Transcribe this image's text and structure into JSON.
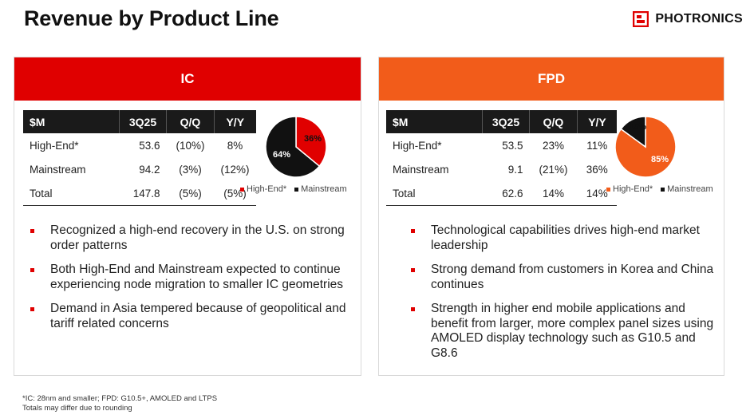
{
  "page_title": "Revenue by Product Line",
  "logo": {
    "name": "PHOTRONICS",
    "icon": "photronics-logo-icon",
    "color": "#e00000"
  },
  "ic": {
    "header": "IC",
    "header_color": "#e00000",
    "table": {
      "columns": [
        "$M",
        "3Q25",
        "Q/Q",
        "Y/Y"
      ],
      "rows": [
        [
          "High-End*",
          "53.6",
          "(10%)",
          "8%"
        ],
        [
          "Mainstream",
          "94.2",
          "(3%)",
          "(12%)"
        ],
        [
          "Total",
          "147.8",
          "(5%)",
          "(5%)"
        ]
      ]
    },
    "bullets": [
      "Recognized a high-end recovery in the U.S. on strong order patterns",
      "Both High-End and Mainstream expected to continue experiencing node migration to smaller IC geometries",
      "Demand in Asia tempered because of geopolitical and tariff related concerns"
    ]
  },
  "fpd": {
    "header": "FPD",
    "header_color": "#f25c1a",
    "table": {
      "columns": [
        "$M",
        "3Q25",
        "Q/Q",
        "Y/Y"
      ],
      "rows": [
        [
          "High-End*",
          "53.5",
          "23%",
          "11%"
        ],
        [
          "Mainstream",
          "9.1",
          "(21%)",
          "36%"
        ],
        [
          "Total",
          "62.6",
          "14%",
          "14%"
        ]
      ]
    },
    "bullets": [
      "Technological capabilities drives high-end market leadership",
      "Strong demand from customers in Korea and China continues",
      "Strength in higher end mobile applications and benefit from larger, more complex panel sizes using AMOLED display technology such as G10.5 and G8.6"
    ]
  },
  "chart_data": [
    {
      "type": "pie",
      "title": "",
      "categories": [
        "High-End*",
        "Mainstream"
      ],
      "values": [
        36,
        64
      ],
      "labels": [
        "36%",
        "64%"
      ],
      "colors": [
        "#e00000",
        "#111111"
      ],
      "legend": "bottom"
    },
    {
      "type": "pie",
      "title": "",
      "categories": [
        "High-End*",
        "Mainstream"
      ],
      "values": [
        85,
        15
      ],
      "labels": [
        "85%",
        "15%"
      ],
      "colors": [
        "#f25c1a",
        "#111111"
      ],
      "legend": "bottom"
    }
  ],
  "footnote": {
    "line1": "*IC: 28nm and smaller; FPD: G10.5+, AMOLED and LTPS",
    "line2": "Totals may differ due to rounding"
  }
}
